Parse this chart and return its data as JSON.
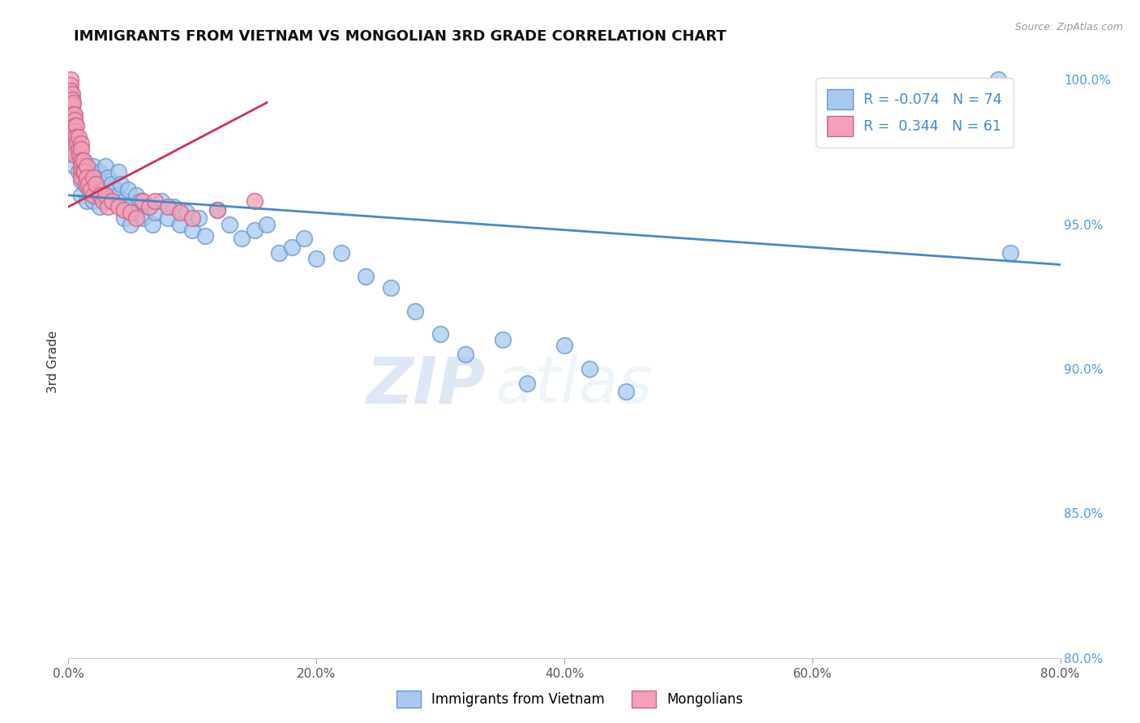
{
  "title": "IMMIGRANTS FROM VIETNAM VS MONGOLIAN 3RD GRADE CORRELATION CHART",
  "source": "Source: ZipAtlas.com",
  "ylabel": "3rd Grade",
  "xlim": [
    0.0,
    0.8
  ],
  "ylim": [
    0.8,
    1.005
  ],
  "yticks": [
    0.8,
    0.85,
    0.9,
    0.95,
    1.0
  ],
  "ytick_labels": [
    "80.0%",
    "85.0%",
    "90.0%",
    "95.0%",
    "100.0%"
  ],
  "xticks": [
    0.0,
    0.2,
    0.4,
    0.6,
    0.8
  ],
  "xtick_labels": [
    "0.0%",
    "20.0%",
    "40.0%",
    "60.0%",
    "80.0%"
  ],
  "blue_color": "#a8c8f0",
  "pink_color": "#f4a0b8",
  "blue_edge": "#6699cc",
  "pink_edge": "#cc6688",
  "trend_blue": "#4488cc",
  "trend_pink": "#cc3355",
  "R_blue": -0.074,
  "N_blue": 74,
  "R_pink": 0.344,
  "N_pink": 61,
  "legend_label_blue": "Immigrants from Vietnam",
  "legend_label_pink": "Mongolians",
  "watermark_zip": "ZIP",
  "watermark_atlas": "atlas",
  "blue_line_x": [
    0.0,
    0.8
  ],
  "blue_line_y": [
    0.96,
    0.936
  ],
  "pink_line_x": [
    0.0,
    0.16
  ],
  "pink_line_y": [
    0.956,
    0.992
  ],
  "blue_scatter_x": [
    0.005,
    0.005,
    0.008,
    0.01,
    0.01,
    0.01,
    0.012,
    0.012,
    0.015,
    0.015,
    0.015,
    0.018,
    0.018,
    0.02,
    0.02,
    0.02,
    0.022,
    0.022,
    0.025,
    0.025,
    0.025,
    0.028,
    0.03,
    0.03,
    0.032,
    0.032,
    0.035,
    0.035,
    0.038,
    0.04,
    0.04,
    0.042,
    0.045,
    0.045,
    0.048,
    0.05,
    0.05,
    0.055,
    0.055,
    0.058,
    0.06,
    0.065,
    0.068,
    0.07,
    0.075,
    0.08,
    0.085,
    0.09,
    0.095,
    0.1,
    0.105,
    0.11,
    0.12,
    0.13,
    0.14,
    0.15,
    0.16,
    0.17,
    0.18,
    0.19,
    0.2,
    0.22,
    0.24,
    0.26,
    0.28,
    0.3,
    0.32,
    0.35,
    0.37,
    0.4,
    0.42,
    0.45,
    0.75,
    0.76
  ],
  "blue_scatter_y": [
    0.975,
    0.97,
    0.968,
    0.972,
    0.965,
    0.96,
    0.972,
    0.966,
    0.97,
    0.963,
    0.958,
    0.968,
    0.962,
    0.97,
    0.964,
    0.958,
    0.966,
    0.96,
    0.968,
    0.962,
    0.956,
    0.964,
    0.97,
    0.962,
    0.966,
    0.96,
    0.964,
    0.958,
    0.962,
    0.968,
    0.96,
    0.964,
    0.958,
    0.952,
    0.962,
    0.956,
    0.95,
    0.96,
    0.954,
    0.958,
    0.952,
    0.956,
    0.95,
    0.954,
    0.958,
    0.952,
    0.956,
    0.95,
    0.954,
    0.948,
    0.952,
    0.946,
    0.955,
    0.95,
    0.945,
    0.948,
    0.95,
    0.94,
    0.942,
    0.945,
    0.938,
    0.94,
    0.932,
    0.928,
    0.92,
    0.912,
    0.905,
    0.91,
    0.895,
    0.908,
    0.9,
    0.892,
    1.0,
    0.94
  ],
  "pink_scatter_x": [
    0.002,
    0.002,
    0.002,
    0.002,
    0.002,
    0.002,
    0.002,
    0.002,
    0.003,
    0.003,
    0.003,
    0.004,
    0.004,
    0.005,
    0.005,
    0.005,
    0.005,
    0.005,
    0.005,
    0.005,
    0.005,
    0.006,
    0.006,
    0.007,
    0.008,
    0.008,
    0.009,
    0.01,
    0.01,
    0.01,
    0.01,
    0.01,
    0.01,
    0.012,
    0.012,
    0.013,
    0.014,
    0.015,
    0.015,
    0.016,
    0.018,
    0.02,
    0.02,
    0.022,
    0.025,
    0.028,
    0.03,
    0.032,
    0.035,
    0.04,
    0.045,
    0.05,
    0.055,
    0.06,
    0.065,
    0.07,
    0.08,
    0.09,
    0.1,
    0.12,
    0.15
  ],
  "pink_scatter_y": [
    1.0,
    0.998,
    0.996,
    0.994,
    0.992,
    0.99,
    0.988,
    0.986,
    0.995,
    0.993,
    0.991,
    0.992,
    0.988,
    0.988,
    0.986,
    0.984,
    0.982,
    0.98,
    0.978,
    0.976,
    0.974,
    0.984,
    0.98,
    0.978,
    0.98,
    0.976,
    0.974,
    0.978,
    0.976,
    0.972,
    0.97,
    0.968,
    0.966,
    0.972,
    0.968,
    0.968,
    0.964,
    0.97,
    0.966,
    0.964,
    0.962,
    0.966,
    0.96,
    0.964,
    0.96,
    0.958,
    0.96,
    0.956,
    0.958,
    0.956,
    0.955,
    0.954,
    0.952,
    0.958,
    0.956,
    0.958,
    0.956,
    0.954,
    0.952,
    0.955,
    0.958
  ]
}
